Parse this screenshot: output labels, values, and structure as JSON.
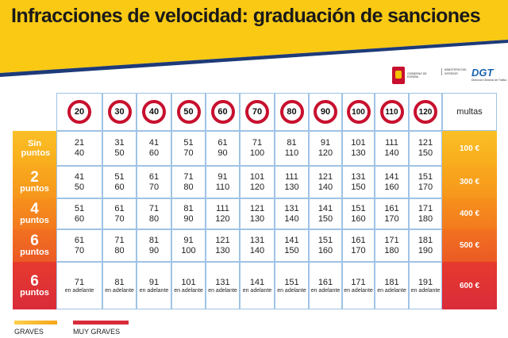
{
  "title": "Infracciones de velocidad: graduación de sanciones",
  "colors": {
    "yellow_band": "#f9c914",
    "navy_stripe": "#1d3a78",
    "cell_border": "#9fc3e5",
    "sign_red": "#c8102e",
    "graves": "#f6a51b",
    "muy_graves": "#d92b3a"
  },
  "logos": {
    "ministerio": "MINISTERIO DEL INTERIOR",
    "gobierno": "GOBIERNO DE ESPAÑA",
    "dgt": "DGT",
    "dgt_sub": "Dirección General de Tráfico"
  },
  "table": {
    "limits": [
      "20",
      "30",
      "40",
      "50",
      "60",
      "70",
      "80",
      "90",
      "100",
      "110",
      "120"
    ],
    "multas_header": "multas",
    "rows": [
      {
        "label_num": "",
        "label_text": "Sin puntos",
        "fine": "100 €",
        "cells": [
          [
            "21",
            "40"
          ],
          [
            "31",
            "50"
          ],
          [
            "41",
            "60"
          ],
          [
            "51",
            "70"
          ],
          [
            "61",
            "90"
          ],
          [
            "71",
            "100"
          ],
          [
            "81",
            "110"
          ],
          [
            "91",
            "120"
          ],
          [
            "101",
            "130"
          ],
          [
            "111",
            "140"
          ],
          [
            "121",
            "150"
          ]
        ]
      },
      {
        "label_num": "2",
        "label_text": "puntos",
        "fine": "300 €",
        "cells": [
          [
            "41",
            "50"
          ],
          [
            "51",
            "60"
          ],
          [
            "61",
            "70"
          ],
          [
            "71",
            "80"
          ],
          [
            "91",
            "110"
          ],
          [
            "101",
            "120"
          ],
          [
            "111",
            "130"
          ],
          [
            "121",
            "140"
          ],
          [
            "131",
            "150"
          ],
          [
            "141",
            "160"
          ],
          [
            "151",
            "170"
          ]
        ]
      },
      {
        "label_num": "4",
        "label_text": "puntos",
        "fine": "400 €",
        "cells": [
          [
            "51",
            "60"
          ],
          [
            "61",
            "70"
          ],
          [
            "71",
            "80"
          ],
          [
            "81",
            "90"
          ],
          [
            "111",
            "120"
          ],
          [
            "121",
            "130"
          ],
          [
            "131",
            "140"
          ],
          [
            "141",
            "150"
          ],
          [
            "151",
            "160"
          ],
          [
            "161",
            "170"
          ],
          [
            "171",
            "180"
          ]
        ]
      },
      {
        "label_num": "6",
        "label_text": "puntos",
        "fine": "500 €",
        "cells": [
          [
            "61",
            "70"
          ],
          [
            "71",
            "80"
          ],
          [
            "81",
            "90"
          ],
          [
            "91",
            "100"
          ],
          [
            "121",
            "130"
          ],
          [
            "131",
            "140"
          ],
          [
            "141",
            "150"
          ],
          [
            "151",
            "160"
          ],
          [
            "161",
            "170"
          ],
          [
            "171",
            "180"
          ],
          [
            "181",
            "190"
          ]
        ]
      },
      {
        "label_num": "6",
        "label_text": "puntos",
        "fine": "600 €",
        "cells": [
          [
            "71",
            "en adelante"
          ],
          [
            "81",
            "en adelante"
          ],
          [
            "91",
            "en adelante"
          ],
          [
            "101",
            "en adelante"
          ],
          [
            "131",
            "en adelante"
          ],
          [
            "141",
            "en adelante"
          ],
          [
            "151",
            "en adelante"
          ],
          [
            "161",
            "en adelante"
          ],
          [
            "171",
            "en adelante"
          ],
          [
            "181",
            "en adelante"
          ],
          [
            "191",
            "en adelante"
          ]
        ]
      }
    ]
  },
  "legend": {
    "graves": "GRAVES",
    "muy_graves": "MUY GRAVES"
  }
}
